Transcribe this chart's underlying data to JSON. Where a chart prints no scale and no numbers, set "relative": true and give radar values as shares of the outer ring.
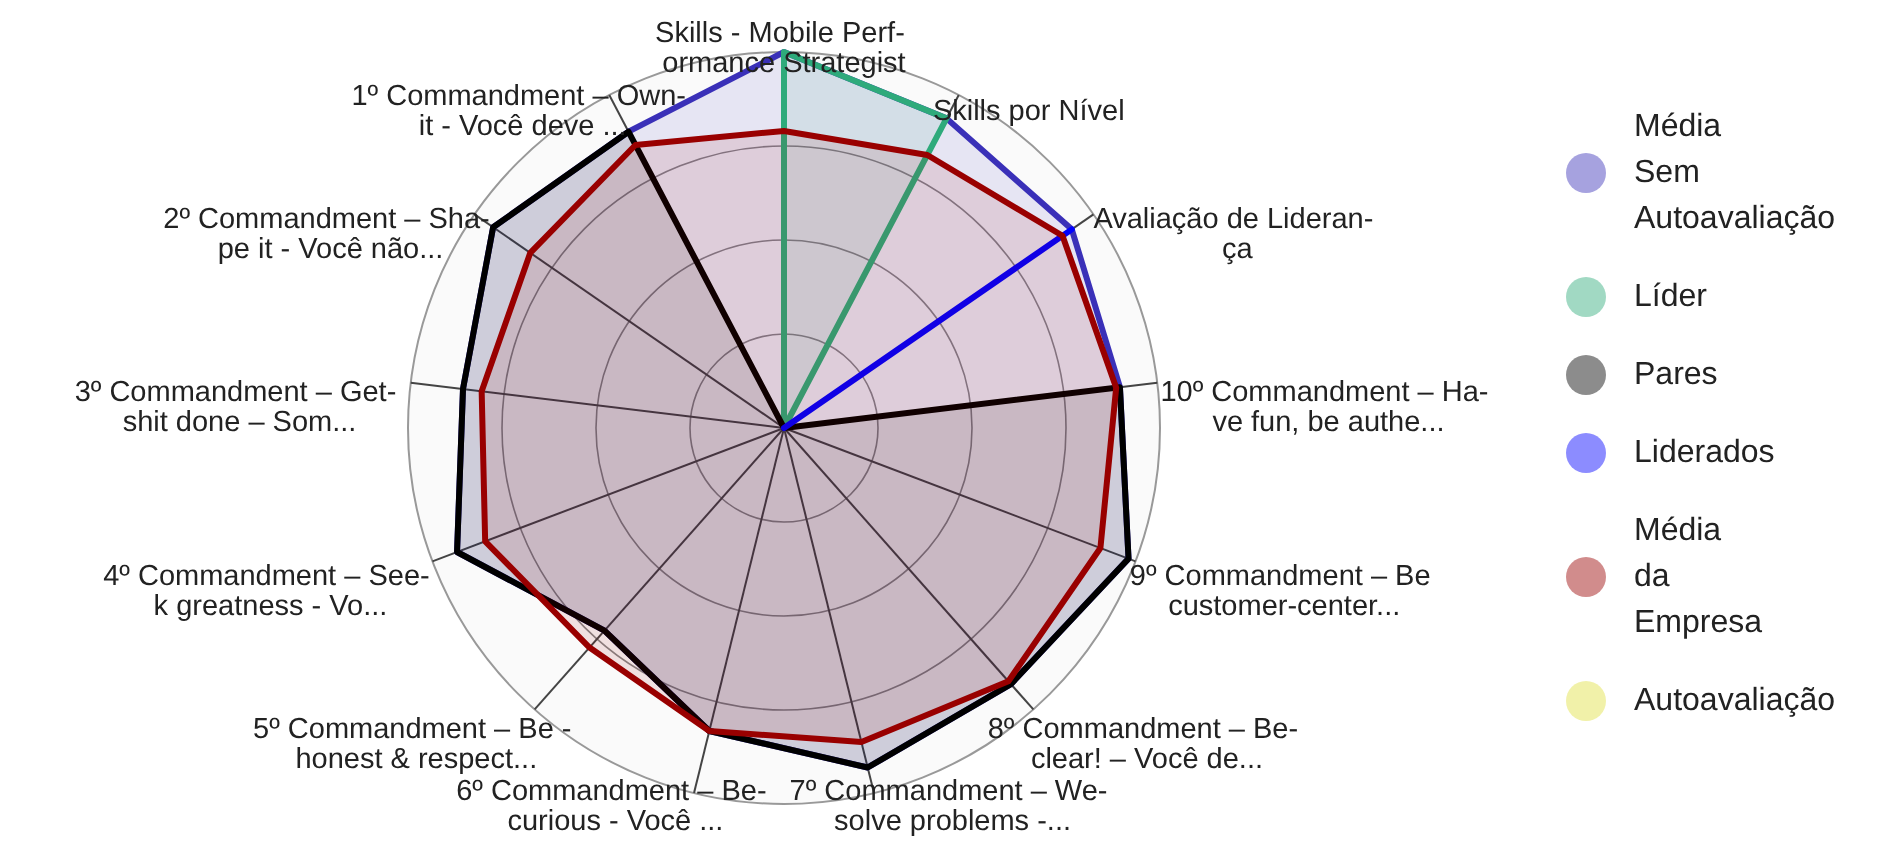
{
  "chart_data": {
    "type": "radar",
    "relative": true,
    "grid": true,
    "legend": "right",
    "line_style": "solid",
    "marker": "none",
    "categories": [
      "Skills - Mobile Perf-\normance Strategist",
      "Skills por Nível",
      "Avaliação de Lideran-\nça",
      "10º Commandment – Ha-\nve fun, be authe...",
      "9º Commandment – Be\ncustomer-center...",
      "8º Commandment – Be-\nclear! – Você de...",
      "7º Commandment – We-\nsolve problems -...",
      "6º Commandment – Be-\ncurious - Você ...",
      "5º Commandment – Be -\nhonest & respect...",
      "4º Commandment – See-\nk greatness - Vo...",
      "3º Commandment – Get-\nshit done – Som...",
      "2º Commandment – Sha-\npe it - Você não...",
      "1º Commandment – Own-\nit - Você deve ..."
    ],
    "series": [
      {
        "name": "Média Sem Autoavaliação",
        "color": "#3a30b8",
        "values": [
          1.0,
          0.93,
          0.93,
          0.9,
          0.98,
          0.91,
          0.93,
          0.83,
          0.72,
          0.93,
          0.86,
          0.94,
          0.89
        ]
      },
      {
        "name": "Líder",
        "color": "#2eaa7b",
        "values": [
          1.0,
          0.93,
          0,
          0,
          0,
          0,
          0,
          0,
          0,
          0,
          0,
          0,
          0
        ]
      },
      {
        "name": "Pares",
        "color": "#000000",
        "values": [
          0,
          0,
          0,
          0.9,
          0.98,
          0.91,
          0.93,
          0.83,
          0.72,
          0.93,
          0.86,
          0.94,
          0.89
        ]
      },
      {
        "name": "Liderados",
        "color": "#0000ff",
        "values": [
          0,
          0,
          0.93,
          0,
          0,
          0,
          0,
          0,
          0,
          0,
          0,
          0,
          0
        ]
      },
      {
        "name": "Média da Empresa",
        "color": "#990000",
        "values": [
          0.79,
          0.82,
          0.9,
          0.89,
          0.9,
          0.9,
          0.86,
          0.83,
          0.78,
          0.85,
          0.81,
          0.82,
          0.85
        ]
      },
      {
        "name": "Autoavaliação",
        "color": "#e0e040",
        "values": [
          null,
          null,
          null,
          null,
          null,
          null,
          null,
          null,
          null,
          null,
          null,
          null,
          null
        ]
      }
    ]
  }
}
